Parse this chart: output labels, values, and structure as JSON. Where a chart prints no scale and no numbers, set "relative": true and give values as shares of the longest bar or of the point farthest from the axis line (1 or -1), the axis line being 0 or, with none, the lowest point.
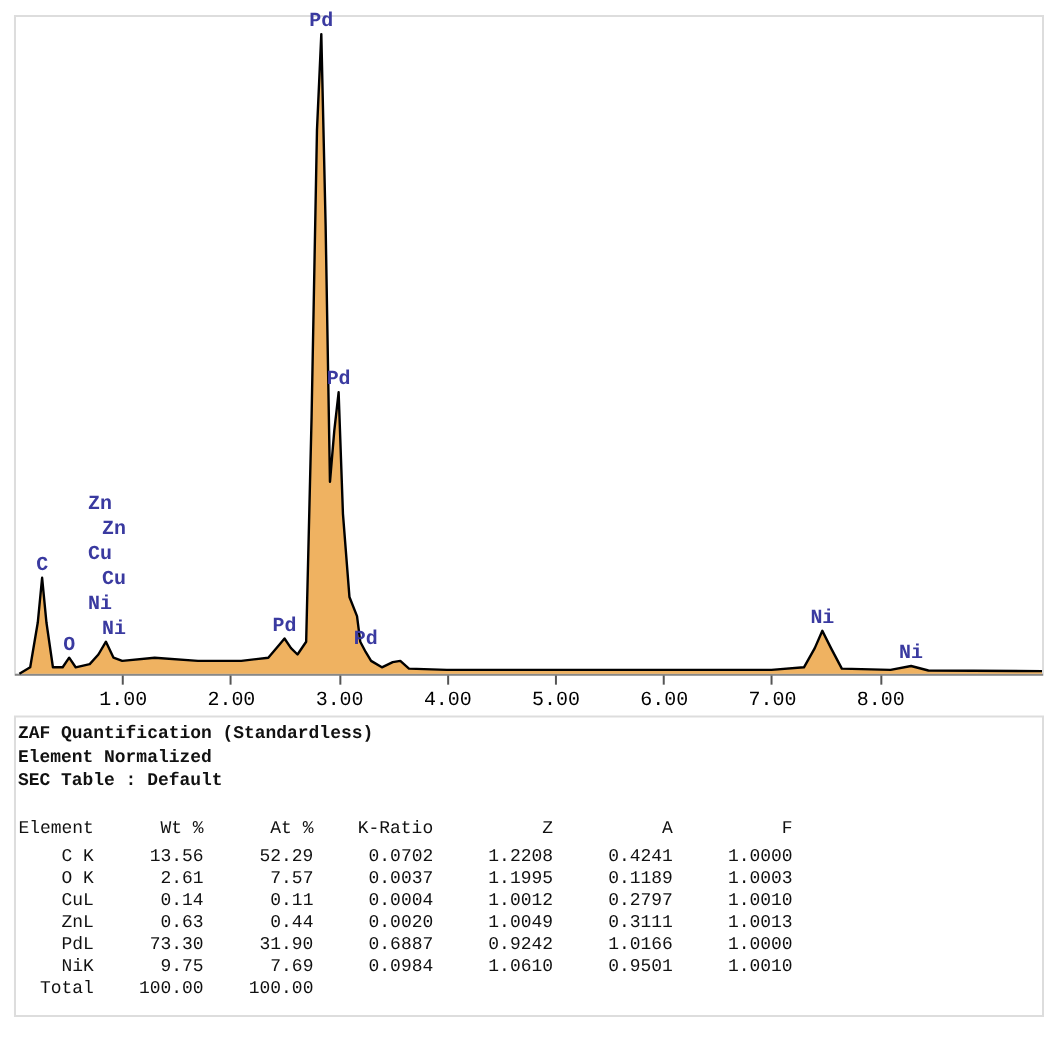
{
  "chart_data": {
    "type": "area",
    "relative": true,
    "x": [
      0.05,
      0.15,
      0.22,
      0.26,
      0.3,
      0.36,
      0.45,
      0.51,
      0.57,
      0.7,
      0.78,
      0.85,
      0.92,
      1.0,
      1.3,
      1.7,
      2.1,
      2.35,
      2.45,
      2.5,
      2.56,
      2.62,
      2.7,
      2.75,
      2.8,
      2.84,
      2.88,
      2.92,
      2.96,
      3.0,
      3.04,
      3.1,
      3.17,
      3.2,
      3.25,
      3.3,
      3.4,
      3.5,
      3.57,
      3.65,
      4.0,
      5.0,
      6.0,
      7.0,
      7.3,
      7.4,
      7.47,
      7.55,
      7.65,
      8.1,
      8.29,
      8.45,
      9.5
    ],
    "series": [
      {
        "color": "#e8921e",
        "values": [
          0.0,
          0.01,
          0.08,
          0.15,
          0.08,
          0.01,
          0.01,
          0.025,
          0.01,
          0.015,
          0.03,
          0.05,
          0.025,
          0.02,
          0.025,
          0.02,
          0.02,
          0.025,
          0.045,
          0.055,
          0.04,
          0.03,
          0.05,
          0.4,
          0.85,
          1.0,
          0.7,
          0.3,
          0.38,
          0.44,
          0.25,
          0.12,
          0.09,
          0.05,
          0.034,
          0.02,
          0.01,
          0.018,
          0.02,
          0.008,
          0.006,
          0.006,
          0.006,
          0.006,
          0.01,
          0.04,
          0.067,
          0.04,
          0.008,
          0.006,
          0.012,
          0.005,
          0.004
        ]
      }
    ],
    "xlim": [
      0,
      9.5
    ],
    "xticks": [
      {
        "value": 1,
        "label": "1.00"
      },
      {
        "value": 2,
        "label": "2.00"
      },
      {
        "value": 3,
        "label": "3.00"
      },
      {
        "value": 4,
        "label": "4.00"
      },
      {
        "value": 5,
        "label": "5.00"
      },
      {
        "value": 6,
        "label": "6.00"
      },
      {
        "value": 7,
        "label": "7.00"
      },
      {
        "value": 8,
        "label": "8.00"
      }
    ],
    "grid": false,
    "annotations": [
      {
        "text": "Pd",
        "x": 2.84,
        "y": 1.0
      },
      {
        "text": "Pd",
        "x": 3.0,
        "y": 0.44
      },
      {
        "text": "C",
        "x": 0.26,
        "y": 0.15
      },
      {
        "text": "O",
        "x": 0.51,
        "y": 0.025
      },
      "Zn",
      "Zn",
      "Cu",
      "Cu",
      {
        "text": "Ni",
        "x": 0.85,
        "y": 0.05
      },
      {
        "text": "Ni",
        "x": 0.85,
        "y": 0.05
      },
      {
        "text": "Pd",
        "x": 2.5,
        "y": 0.055
      },
      {
        "text": "Pd",
        "x": 3.25,
        "y": 0.034
      },
      {
        "text": "Ni",
        "x": 7.47,
        "y": 0.067
      },
      {
        "text": "Ni",
        "x": 8.29,
        "y": 0.012
      },
      "ZAF Quantification (Standardless)",
      "Element Normalized",
      "SEC Table : Default",
      "Element  Wt %  At %  K-Ratio  Z  A  F",
      "C K  13.56  52.29  0.0702  1.2208  0.4241  1.0000",
      "O K  2.61  7.57  0.0037  1.1995  0.1189  1.0003",
      "CuL  0.14  0.11  0.0004  1.0012  0.2797  1.0010",
      "ZnL  0.63  0.44  0.0020  1.0049  0.3111  1.0013",
      "PdL  73.30  31.90  0.6887  0.9242  1.0166  1.0000",
      "NiK  9.75  7.69  0.0984  1.0610  0.9501  1.0010",
      "Total  100.00  100.00"
    ]
  }
}
